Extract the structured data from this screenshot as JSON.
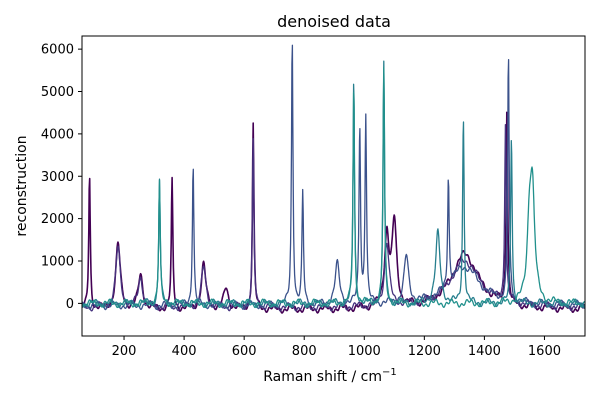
{
  "chart_data": {
    "type": "line",
    "title": "denoised data",
    "xlabel": "Raman shift / cm",
    "xlabel_sup": "−1",
    "ylabel": "reconstruction",
    "xlim": [
      60,
      1735
    ],
    "ylim": [
      -770,
      6310
    ],
    "xticks": [
      200,
      400,
      600,
      800,
      1000,
      1200,
      1400,
      1600
    ],
    "yticks": [
      0,
      1000,
      2000,
      3000,
      4000,
      5000,
      6000
    ],
    "grid": false,
    "legend": "none",
    "colors": {
      "dominant": "#440154",
      "variants": [
        "#440154",
        "#46327e",
        "#3b528b",
        "#365c8d",
        "#277f8e",
        "#21908c",
        "#1f9e89"
      ]
    },
    "series": [
      {
        "color": "#440154",
        "baseline_level": -150,
        "broad_band": {
          "center": 1335,
          "height": 1300,
          "width": 55
        },
        "peaks": [
          [
            85,
            3150
          ],
          [
            180,
            1550
          ],
          [
            255,
            800
          ],
          [
            360,
            3000
          ],
          [
            465,
            1050
          ],
          [
            540,
            500
          ],
          [
            630,
            4350
          ],
          [
            1075,
            1700
          ],
          [
            1100,
            1950
          ],
          [
            1475,
            4700
          ]
        ]
      },
      {
        "color": "#46327e",
        "baseline_level": -100,
        "broad_band": {
          "center": 1335,
          "height": 1100,
          "width": 60
        },
        "peaks": [
          [
            180,
            1400
          ],
          [
            255,
            700
          ],
          [
            465,
            950
          ],
          [
            630,
            3900
          ],
          [
            1075,
            1500
          ],
          [
            1470,
            4200
          ]
        ]
      },
      {
        "color": "#3b528b",
        "baseline_level": -50,
        "broad_band": {
          "center": 1335,
          "height": 900,
          "width": 60
        },
        "peaks": [
          [
            430,
            3350
          ],
          [
            760,
            6300
          ],
          [
            795,
            2600
          ],
          [
            910,
            950
          ],
          [
            985,
            4200
          ],
          [
            1005,
            4450
          ],
          [
            1140,
            1100
          ],
          [
            1280,
            2600
          ],
          [
            1480,
            5800
          ]
        ]
      },
      {
        "color": "#277f8e",
        "baseline_level": 0,
        "broad_band": {
          "center": 1335,
          "height": 0,
          "width": 60
        },
        "peaks": [
          [
            318,
            2950
          ],
          [
            965,
            5300
          ],
          [
            1065,
            5700
          ],
          [
            1245,
            1650
          ],
          [
            1330,
            4400
          ],
          [
            1490,
            4000
          ]
        ]
      },
      {
        "color": "#21908c",
        "baseline_level": 0,
        "broad_band": {
          "center": 1335,
          "height": 0,
          "width": 60
        },
        "peaks": [
          [
            318,
            2850
          ],
          [
            965,
            5100
          ],
          [
            1065,
            5500
          ],
          [
            1550,
            1700
          ],
          [
            1560,
            2400
          ]
        ]
      }
    ]
  }
}
